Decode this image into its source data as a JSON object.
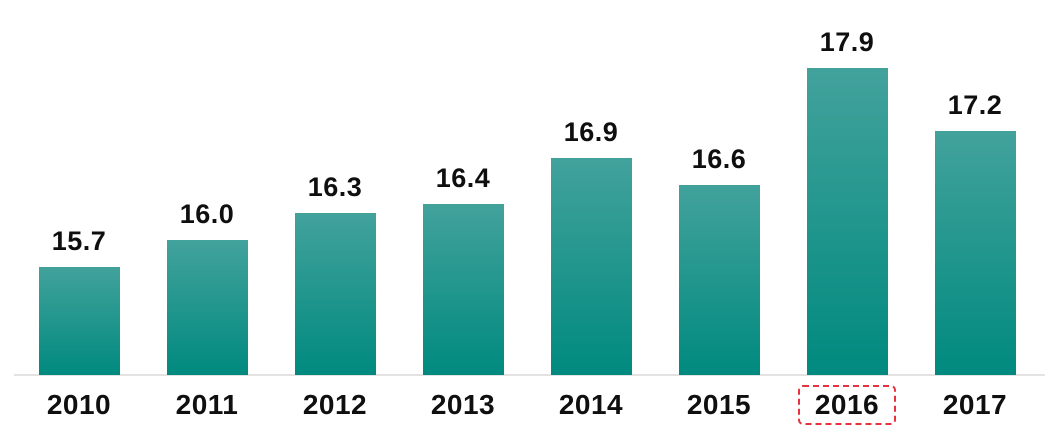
{
  "chart_data": {
    "type": "bar",
    "categories": [
      "2010",
      "2011",
      "2012",
      "2013",
      "2014",
      "2015",
      "2016",
      "2017"
    ],
    "values": [
      15.7,
      16.0,
      16.3,
      16.4,
      16.9,
      16.6,
      17.9,
      17.2
    ],
    "value_labels": [
      "15.7",
      "16.0",
      "16.3",
      "16.4",
      "16.9",
      "16.6",
      "17.9",
      "17.2"
    ],
    "title": "",
    "xlabel": "",
    "ylabel": "",
    "ylim": [
      14.5,
      18.4
    ],
    "grid": false,
    "legend": "none",
    "data_labels": "above-bars",
    "highlighted_category": "2016",
    "colors": {
      "bar_gradient_top": "#42a29b",
      "bar_gradient_bottom": "#008a7f",
      "label_color": "#0f0f0f",
      "axis_line_color": "#e3e3e3",
      "highlight_border_color": "#e5323e",
      "background": "#ffffff"
    }
  }
}
